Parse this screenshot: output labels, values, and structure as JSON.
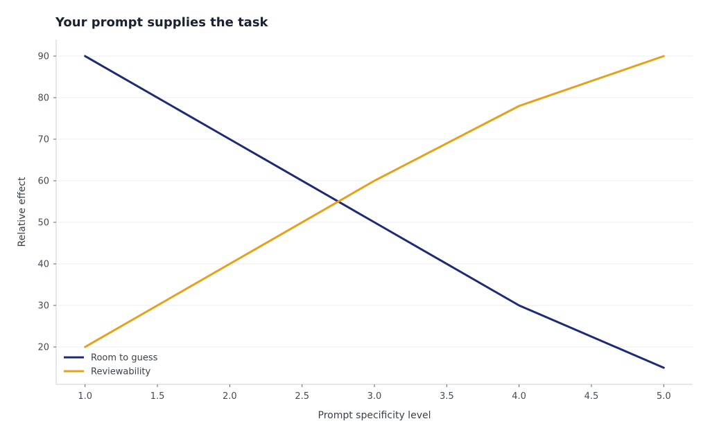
{
  "chart_data": {
    "type": "line",
    "title": "Your prompt supplies the task",
    "xlabel": "Prompt specificity level",
    "ylabel": "Relative effect",
    "xlim": [
      0.8,
      5.2
    ],
    "ylim": [
      11,
      94
    ],
    "xticks": [
      "1.0",
      "1.5",
      "2.0",
      "2.5",
      "3.0",
      "3.5",
      "4.0",
      "4.5",
      "5.0"
    ],
    "yticks": [
      "20",
      "30",
      "40",
      "50",
      "60",
      "70",
      "80",
      "90"
    ],
    "grid": "horizontal",
    "legend": "bottom-left",
    "series": [
      {
        "name": "Room to guess",
        "color": "#1c2a78",
        "x": [
          1,
          2,
          3,
          4,
          5
        ],
        "y": [
          90,
          70,
          50,
          30,
          15
        ]
      },
      {
        "name": "Reviewability",
        "color": "#e5a11c",
        "x": [
          1,
          2,
          3,
          4,
          5
        ],
        "y": [
          20,
          40,
          60,
          78,
          90
        ]
      }
    ]
  }
}
